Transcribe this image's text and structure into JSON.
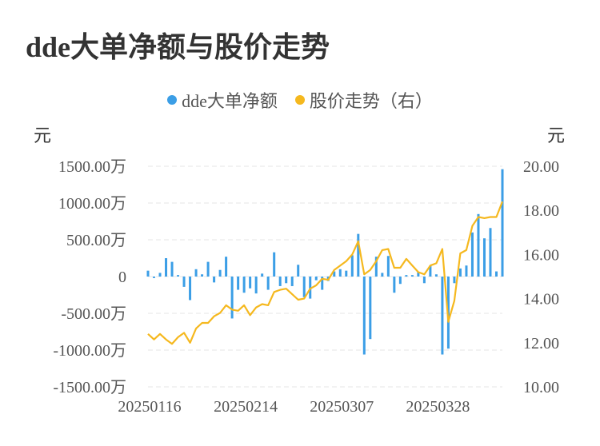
{
  "title": "dde大单净额与股价走势",
  "legend": [
    {
      "label": "dde大单净额",
      "color": "#3b9ee6"
    },
    {
      "label": "股价走势（右）",
      "color": "#f5b81e"
    }
  ],
  "chart_data": {
    "type": "bar+line",
    "left_unit": "元",
    "right_unit": "元",
    "left_ticks": [
      "1500.00万",
      "1000.00万",
      "500.00万",
      "0",
      "-500.00万",
      "-1000.00万",
      "-1500.00万"
    ],
    "right_ticks": [
      "20.00",
      "18.00",
      "16.00",
      "14.00",
      "12.00",
      "10.00"
    ],
    "left_range": [
      -1500,
      1500
    ],
    "right_range": [
      10,
      20
    ],
    "x_ticks": [
      {
        "label": "20250116",
        "index": 0
      },
      {
        "label": "20250214",
        "index": 16
      },
      {
        "label": "20250307",
        "index": 32
      },
      {
        "label": "20250328",
        "index": 48
      }
    ],
    "series": [
      {
        "name": "dde大单净额",
        "kind": "bar",
        "axis": "left",
        "color": "#3b9ee6",
        "values": [
          80,
          -20,
          50,
          250,
          200,
          20,
          -140,
          -320,
          100,
          30,
          200,
          -80,
          90,
          270,
          -570,
          -180,
          -220,
          -160,
          -230,
          40,
          -180,
          330,
          -130,
          -90,
          -130,
          160,
          -280,
          -300,
          -50,
          -180,
          -60,
          70,
          100,
          80,
          290,
          580,
          -1060,
          -850,
          270,
          50,
          280,
          -220,
          -100,
          20,
          20,
          60,
          -90,
          150,
          30,
          -1060,
          -980,
          -90,
          110,
          150,
          600,
          850,
          520,
          660,
          70,
          1460
        ]
      },
      {
        "name": "股价走势（右）",
        "kind": "line",
        "axis": "right",
        "color": "#f5b81e",
        "values": [
          12.4,
          12.15,
          12.4,
          12.15,
          11.95,
          12.25,
          12.45,
          12.0,
          12.65,
          12.9,
          12.9,
          13.2,
          13.35,
          13.7,
          13.5,
          13.45,
          13.7,
          13.25,
          13.6,
          13.75,
          13.7,
          14.3,
          14.4,
          14.45,
          14.2,
          13.95,
          14.0,
          14.45,
          14.6,
          14.9,
          14.85,
          15.3,
          15.5,
          15.7,
          16.0,
          16.6,
          15.1,
          15.3,
          15.7,
          16.2,
          16.25,
          15.4,
          15.4,
          15.8,
          15.5,
          15.2,
          15.1,
          15.5,
          15.6,
          16.25,
          12.95,
          13.9,
          16.05,
          16.2,
          17.3,
          17.7,
          17.65,
          17.7,
          17.7,
          18.4
        ]
      }
    ]
  }
}
